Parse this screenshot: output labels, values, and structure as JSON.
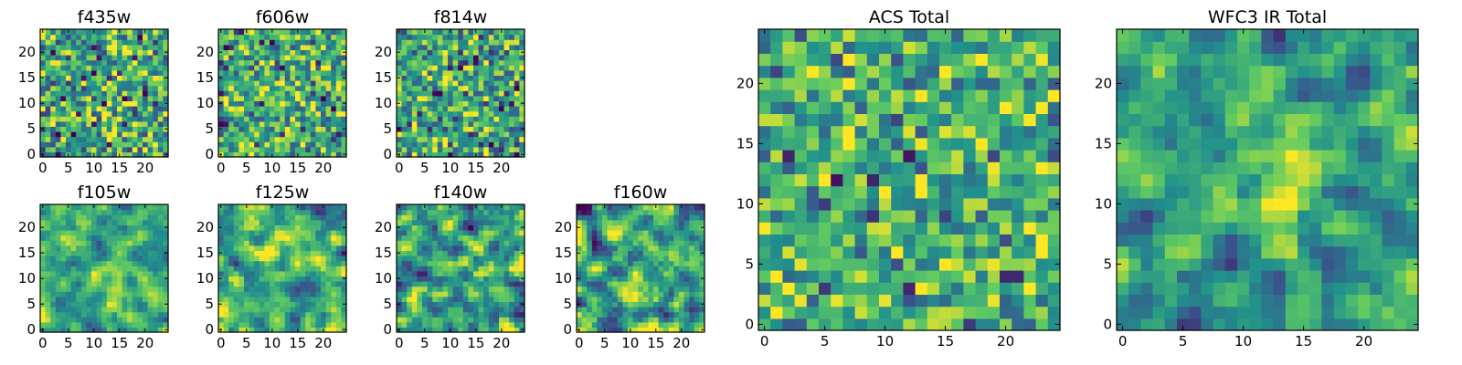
{
  "figure": {
    "colormap": "viridis",
    "colormap_stops": [
      "#440154",
      "#3b528b",
      "#21918c",
      "#5ec962",
      "#fde725"
    ],
    "background": "#ffffff"
  },
  "chart_data": [
    {
      "type": "heatmap",
      "title": "f435w",
      "xlim": [
        0,
        24
      ],
      "ylim": [
        0,
        24
      ],
      "grid_size": [
        25,
        25
      ],
      "xticks": [
        "0",
        "5",
        "10",
        "15",
        "20"
      ],
      "yticks": [
        "0",
        "5",
        "10",
        "15",
        "20"
      ],
      "value_range": [
        0,
        1
      ],
      "seed": 11,
      "smooth": 0,
      "bias": 0.58,
      "spread": 0.25,
      "peak_amp": 0,
      "peak": [
        12,
        12
      ],
      "peak_sigma": 5
    },
    {
      "type": "heatmap",
      "title": "f606w",
      "xlim": [
        0,
        24
      ],
      "ylim": [
        0,
        24
      ],
      "grid_size": [
        25,
        25
      ],
      "xticks": [
        "0",
        "5",
        "10",
        "15",
        "20"
      ],
      "yticks": [
        "0",
        "5",
        "10",
        "15",
        "20"
      ],
      "value_range": [
        0,
        1
      ],
      "seed": 23,
      "smooth": 0,
      "bias": 0.6,
      "spread": 0.24,
      "peak_amp": 0,
      "peak": [
        12,
        12
      ],
      "peak_sigma": 5
    },
    {
      "type": "heatmap",
      "title": "f814w",
      "xlim": [
        0,
        24
      ],
      "ylim": [
        0,
        24
      ],
      "grid_size": [
        25,
        25
      ],
      "xticks": [
        "0",
        "5",
        "10",
        "15",
        "20"
      ],
      "yticks": [
        "0",
        "5",
        "10",
        "15",
        "20"
      ],
      "value_range": [
        0,
        1
      ],
      "seed": 37,
      "smooth": 0,
      "bias": 0.6,
      "spread": 0.24,
      "peak_amp": 0,
      "peak": [
        12,
        12
      ],
      "peak_sigma": 5
    },
    {
      "type": "heatmap",
      "title": "f105w",
      "xlim": [
        0,
        24
      ],
      "ylim": [
        0,
        24
      ],
      "grid_size": [
        25,
        25
      ],
      "xticks": [
        "0",
        "5",
        "10",
        "15",
        "20"
      ],
      "yticks": [
        "0",
        "5",
        "10",
        "15",
        "20"
      ],
      "value_range": [
        0,
        1
      ],
      "seed": 41,
      "smooth": 1,
      "bias": 0.6,
      "spread": 0.2,
      "peak_amp": 0.2,
      "peak": [
        14,
        8
      ],
      "peak_sigma": 4
    },
    {
      "type": "heatmap",
      "title": "f125w",
      "xlim": [
        0,
        24
      ],
      "ylim": [
        0,
        24
      ],
      "grid_size": [
        25,
        25
      ],
      "xticks": [
        "0",
        "5",
        "10",
        "15",
        "20"
      ],
      "yticks": [
        "0",
        "5",
        "10",
        "15",
        "20"
      ],
      "value_range": [
        0,
        1
      ],
      "seed": 53,
      "smooth": 1,
      "bias": 0.6,
      "spread": 0.24,
      "peak_amp": 0.1,
      "peak": [
        14,
        12
      ],
      "peak_sigma": 4
    },
    {
      "type": "heatmap",
      "title": "f140w",
      "xlim": [
        0,
        24
      ],
      "ylim": [
        0,
        24
      ],
      "grid_size": [
        25,
        25
      ],
      "xticks": [
        "0",
        "5",
        "10",
        "15",
        "20"
      ],
      "yticks": [
        "0",
        "5",
        "10",
        "15",
        "20"
      ],
      "value_range": [
        0,
        1
      ],
      "seed": 67,
      "smooth": 1,
      "bias": 0.55,
      "spread": 0.3,
      "peak_amp": 0.1,
      "peak": [
        12,
        12
      ],
      "peak_sigma": 4
    },
    {
      "type": "heatmap",
      "title": "f160w",
      "xlim": [
        0,
        24
      ],
      "ylim": [
        0,
        24
      ],
      "grid_size": [
        25,
        25
      ],
      "xticks": [
        "0",
        "5",
        "10",
        "15",
        "20"
      ],
      "yticks": [
        "0",
        "5",
        "10",
        "15",
        "20"
      ],
      "value_range": [
        0,
        1
      ],
      "seed": 79,
      "smooth": 1,
      "bias": 0.55,
      "spread": 0.3,
      "peak_amp": 0.25,
      "peak": [
        11,
        11
      ],
      "peak_sigma": 3
    },
    {
      "type": "heatmap",
      "title": "ACS Total",
      "xlim": [
        0,
        24
      ],
      "ylim": [
        0,
        24
      ],
      "grid_size": [
        25,
        25
      ],
      "xticks": [
        "0",
        "5",
        "10",
        "15",
        "20"
      ],
      "yticks": [
        "0",
        "5",
        "10",
        "15",
        "20"
      ],
      "value_range": [
        0,
        1
      ],
      "seed": 97,
      "smooth": 0,
      "bias": 0.62,
      "spread": 0.22,
      "peak_amp": 0,
      "peak": [
        12,
        12
      ],
      "peak_sigma": 5
    },
    {
      "type": "heatmap",
      "title": "WFC3 IR Total",
      "xlim": [
        0,
        24
      ],
      "ylim": [
        0,
        24
      ],
      "grid_size": [
        25,
        25
      ],
      "xticks": [
        "0",
        "5",
        "10",
        "15",
        "20"
      ],
      "yticks": [
        "0",
        "5",
        "10",
        "15",
        "20"
      ],
      "value_range": [
        0,
        1
      ],
      "seed": 113,
      "smooth": 1,
      "bias": 0.55,
      "spread": 0.22,
      "peak_amp": 0.3,
      "peak": [
        12,
        12
      ],
      "peak_sigma": 3
    }
  ]
}
